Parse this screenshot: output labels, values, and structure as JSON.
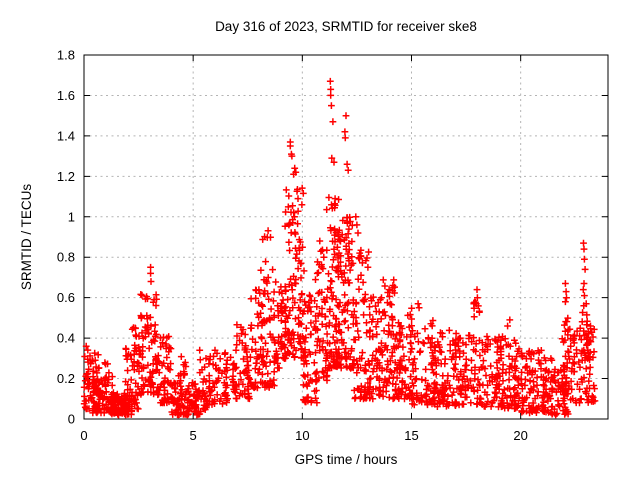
{
  "window": {
    "background": "#ffffff"
  },
  "chart_data": {
    "type": "scatter",
    "title": "Day 316 of 2023, SRMTID for receiver ske8",
    "xlabel": "GPS time / hours",
    "ylabel": "SRMTID / TECUs",
    "xlim": [
      0,
      24
    ],
    "ylim": [
      0,
      1.8
    ],
    "xticks": [
      0,
      5,
      10,
      15,
      20
    ],
    "xtick_labels": [
      "0",
      "5",
      "10",
      "15",
      "20"
    ],
    "yticks": [
      0,
      0.2,
      0.4,
      0.6,
      0.8,
      1.0,
      1.2,
      1.4,
      1.6,
      1.8
    ],
    "ytick_labels": [
      "0",
      "0.2",
      "0.4",
      "0.6",
      "0.8",
      "1",
      "1.2",
      "1.4",
      "1.6",
      "1.8"
    ],
    "grid": true,
    "grid_color": "#b4b4b4",
    "border_color": "#000000",
    "legend": "none",
    "marker": "plus",
    "marker_color": "#ff0000",
    "series_name": "SRMTID",
    "point_clusters_comment": "each cluster = [hour_start, hour_end, n_points, y_min, y_max, low_bias_exponent] estimated from the plotted cloud",
    "point_clusters": [
      [
        0.0,
        0.7,
        55,
        0.05,
        0.33,
        1.8
      ],
      [
        0.0,
        0.25,
        8,
        0.18,
        0.38,
        1.0
      ],
      [
        0.4,
        1.3,
        70,
        0.03,
        0.22,
        1.7
      ],
      [
        0.95,
        1.15,
        8,
        0.15,
        0.29,
        1.0
      ],
      [
        1.2,
        2.2,
        110,
        0.02,
        0.13,
        1.4
      ],
      [
        1.9,
        2.6,
        45,
        0.05,
        0.38,
        1.5
      ],
      [
        2.2,
        2.45,
        8,
        0.3,
        0.46,
        1.0
      ],
      [
        2.5,
        3.45,
        85,
        0.12,
        0.62,
        1.4
      ],
      [
        3.4,
        4.1,
        50,
        0.08,
        0.42,
        1.6
      ],
      [
        4.0,
        5.15,
        85,
        0.02,
        0.19,
        1.5
      ],
      [
        4.3,
        4.75,
        10,
        0.19,
        0.31,
        1.0
      ],
      [
        5.0,
        5.6,
        40,
        0.02,
        0.16,
        1.3
      ],
      [
        5.2,
        5.55,
        6,
        0.18,
        0.33,
        1.0
      ],
      [
        5.5,
        6.6,
        60,
        0.07,
        0.33,
        1.5
      ],
      [
        6.5,
        7.6,
        60,
        0.1,
        0.4,
        1.5
      ],
      [
        7.0,
        7.5,
        6,
        0.4,
        0.47,
        1.0
      ],
      [
        7.6,
        8.75,
        95,
        0.15,
        0.65,
        1.5
      ],
      [
        8.1,
        8.65,
        12,
        0.65,
        0.98,
        1.0
      ],
      [
        8.7,
        9.25,
        50,
        0.25,
        0.68,
        1.3
      ],
      [
        9.2,
        10.1,
        115,
        0.3,
        1.18,
        1.6
      ],
      [
        10.05,
        10.7,
        60,
        0.08,
        0.62,
        1.4
      ],
      [
        10.6,
        11.15,
        55,
        0.18,
        0.85,
        1.4
      ],
      [
        11.1,
        11.7,
        85,
        0.25,
        1.1,
        1.5
      ],
      [
        11.65,
        12.35,
        85,
        0.25,
        1.0,
        1.4
      ],
      [
        12.3,
        13.1,
        80,
        0.1,
        0.9,
        1.6
      ],
      [
        13.0,
        14.1,
        90,
        0.1,
        0.62,
        1.5
      ],
      [
        13.7,
        14.25,
        10,
        0.6,
        0.69,
        1.0
      ],
      [
        14.1,
        15.1,
        85,
        0.1,
        0.55,
        1.4
      ],
      [
        15.0,
        16.1,
        80,
        0.07,
        0.5,
        1.5
      ],
      [
        16.0,
        17.1,
        75,
        0.06,
        0.44,
        1.5
      ],
      [
        17.0,
        18.15,
        75,
        0.07,
        0.45,
        1.5
      ],
      [
        17.85,
        18.15,
        9,
        0.45,
        0.64,
        1.0
      ],
      [
        18.1,
        19.2,
        75,
        0.06,
        0.42,
        1.5
      ],
      [
        19.1,
        20.1,
        70,
        0.05,
        0.4,
        1.5
      ],
      [
        20.0,
        21.1,
        80,
        0.03,
        0.34,
        1.5
      ],
      [
        21.0,
        22.2,
        90,
        0.02,
        0.3,
        1.5
      ],
      [
        21.9,
        22.3,
        10,
        0.3,
        0.54,
        1.0
      ],
      [
        22.0,
        22.85,
        55,
        0.08,
        0.45,
        1.3
      ],
      [
        22.8,
        23.1,
        12,
        0.3,
        0.57,
        1.0
      ],
      [
        22.9,
        23.4,
        45,
        0.08,
        0.45,
        1.3
      ]
    ],
    "notable_points": [
      [
        3.05,
        0.75
      ],
      [
        3.05,
        0.72
      ],
      [
        3.07,
        0.68
      ],
      [
        9.45,
        1.37
      ],
      [
        9.45,
        1.35
      ],
      [
        9.5,
        1.31
      ],
      [
        9.52,
        1.3
      ],
      [
        9.65,
        1.24
      ],
      [
        9.7,
        1.22
      ],
      [
        9.6,
        1.21
      ],
      [
        11.28,
        1.67
      ],
      [
        11.3,
        1.63
      ],
      [
        11.3,
        1.6
      ],
      [
        11.33,
        1.55
      ],
      [
        11.4,
        1.47
      ],
      [
        11.35,
        1.29
      ],
      [
        11.45,
        1.27
      ],
      [
        11.5,
        1.09
      ],
      [
        11.95,
        1.42
      ],
      [
        11.97,
        1.39
      ],
      [
        12.0,
        1.5
      ],
      [
        12.05,
        1.26
      ],
      [
        12.1,
        1.23
      ],
      [
        12.45,
        1.0
      ],
      [
        12.5,
        0.96
      ],
      [
        12.55,
        0.92
      ],
      [
        10.8,
        0.88
      ],
      [
        10.85,
        0.83
      ],
      [
        22.05,
        0.67
      ],
      [
        22.08,
        0.63
      ],
      [
        22.1,
        0.6
      ],
      [
        22.05,
        0.58
      ],
      [
        22.88,
        0.87
      ],
      [
        22.9,
        0.84
      ],
      [
        22.92,
        0.79
      ],
      [
        22.95,
        0.74
      ],
      [
        22.9,
        0.67
      ],
      [
        22.87,
        0.64
      ],
      [
        22.92,
        0.61
      ],
      [
        23.0,
        0.57
      ],
      [
        18.0,
        0.64
      ],
      [
        18.02,
        0.6
      ],
      [
        17.97,
        0.57
      ],
      [
        14.15,
        0.66
      ],
      [
        15.3,
        0.57
      ],
      [
        15.35,
        0.55
      ],
      [
        19.5,
        0.49
      ],
      [
        19.4,
        0.46
      ],
      [
        5.3,
        0.34
      ],
      [
        0.1,
        0.36
      ],
      [
        2.35,
        0.45
      ],
      [
        6.0,
        0.34
      ],
      [
        23.2,
        0.46
      ]
    ]
  }
}
